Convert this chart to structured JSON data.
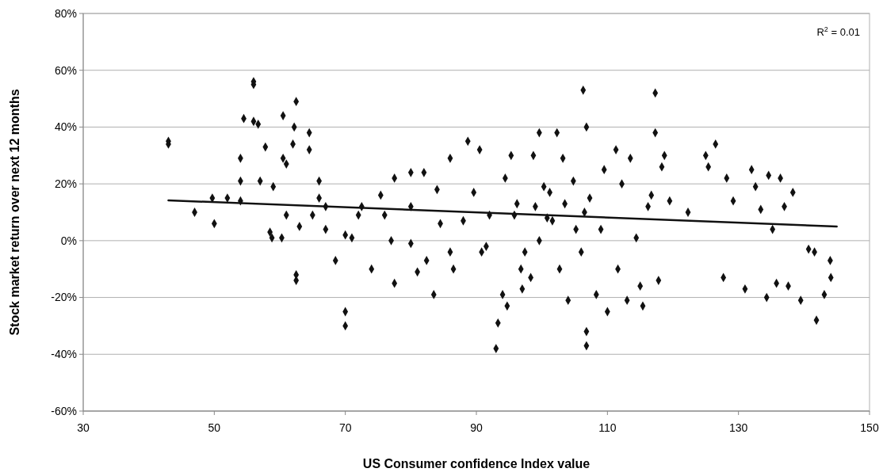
{
  "chart_data": {
    "type": "scatter",
    "xlabel": "US Consumer confidence Index value",
    "ylabel": "Stock market return over next 12 months",
    "annotations": [
      "R$^{2}$ = 0.01"
    ],
    "xlim": [
      30,
      150
    ],
    "xticks": [
      30,
      50,
      70,
      90,
      110,
      130,
      150
    ],
    "ylim": [
      -60,
      80
    ],
    "yticks": [
      {
        "value": -60,
        "label": "-60%"
      },
      {
        "value": -40,
        "label": "-40%"
      },
      {
        "value": -20,
        "label": "-20%"
      },
      {
        "value": 0,
        "label": "0%"
      },
      {
        "value": 20,
        "label": "20%"
      },
      {
        "value": 40,
        "label": "40%"
      },
      {
        "value": 60,
        "label": "60%"
      },
      {
        "value": 80,
        "label": "80%"
      }
    ],
    "grid": "y",
    "series": [
      {
        "color": "#111111",
        "marker": "diamond",
        "x": [
          43,
          43,
          47,
          49.7,
          50,
          52,
          54,
          54,
          54,
          54.5,
          56,
          56,
          56,
          56.7,
          57,
          57.8,
          58.5,
          58.8,
          59,
          60.3,
          60.5,
          60.5,
          61,
          61,
          62,
          62.2,
          62.5,
          62.5,
          62.5,
          63,
          64.5,
          64.5,
          65,
          66,
          66,
          67,
          67,
          68.5,
          70,
          70,
          70,
          71,
          72,
          72.5,
          74,
          75.4,
          76,
          77,
          77.5,
          77.5,
          80,
          80,
          80,
          81,
          82,
          82.4,
          83.5,
          84,
          84.5,
          86,
          86,
          86.5,
          88,
          88.7,
          89.6,
          90.5,
          90.8,
          91.5,
          92,
          93,
          93.3,
          94,
          94.4,
          94.7,
          95.3,
          95.8,
          96.2,
          96.8,
          97,
          97.4,
          98.3,
          98.7,
          99,
          99.6,
          99.6,
          100.3,
          100.8,
          101.2,
          101.6,
          102.3,
          102.7,
          103.2,
          103.5,
          104,
          104.8,
          105.2,
          106,
          106.3,
          106.5,
          106.8,
          106.8,
          106.8,
          107.3,
          108.3,
          109,
          109.5,
          110,
          111.3,
          111.6,
          112.2,
          113,
          113.5,
          114.4,
          115,
          115.4,
          116.2,
          116.7,
          117.3,
          117.3,
          117.8,
          118.3,
          118.7,
          119.5,
          122.3,
          125,
          125.4,
          126.5,
          127.7,
          128.2,
          129.2,
          131,
          132,
          132.6,
          133.4,
          134.3,
          134.6,
          135.2,
          135.8,
          136.4,
          137,
          137.6,
          138.3,
          139.5,
          140.7,
          141.6,
          141.9,
          143.1,
          144,
          144.1
        ],
        "values": [
          35,
          34,
          10,
          15,
          6,
          15,
          29,
          21,
          14,
          43,
          56,
          55,
          42,
          41,
          21,
          33,
          3,
          1,
          19,
          1,
          44,
          29,
          27,
          9,
          34,
          40,
          49,
          -12,
          -14,
          5,
          38,
          32,
          9,
          15,
          21,
          12,
          4,
          -7,
          2,
          -25,
          -30,
          1,
          9,
          12,
          -10,
          16,
          9,
          0,
          -15,
          22,
          24,
          12,
          -1,
          -11,
          24,
          -7,
          -19,
          18,
          6,
          29,
          -4,
          -10,
          7,
          35,
          17,
          32,
          -4,
          -2,
          9,
          -38,
          -29,
          -19,
          22,
          -23,
          30,
          9,
          13,
          -10,
          -17,
          -4,
          -13,
          30,
          12,
          0,
          38,
          19,
          8,
          17,
          7,
          38,
          -10,
          29,
          13,
          -21,
          21,
          4,
          -4,
          53,
          10,
          40,
          -32,
          -37,
          15,
          -19,
          4,
          25,
          -25,
          32,
          -10,
          20,
          -21,
          29,
          1,
          -16,
          -23,
          12,
          16,
          52,
          38,
          -14,
          26,
          30,
          14,
          10,
          30,
          26,
          34,
          -13,
          22,
          14,
          -17,
          25,
          19,
          11,
          -20,
          23,
          4,
          -15,
          22,
          12,
          -16,
          17,
          -21,
          -3,
          -4,
          -28,
          -19,
          -7,
          -13
        ]
      },
      {
        "type": "line",
        "color": "#111111",
        "x": [
          43,
          145
        ],
        "values": [
          14.2,
          5
        ]
      }
    ]
  }
}
